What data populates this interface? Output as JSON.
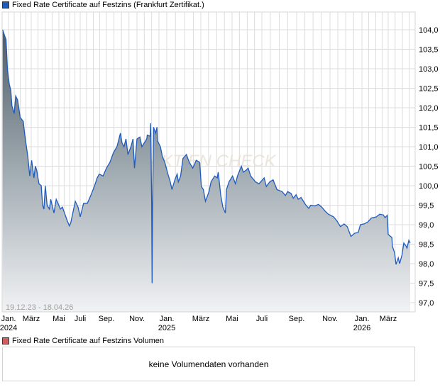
{
  "legend": {
    "price_label": "Fixed Rate Certificate auf Festzins (Frankfurt Zertifikat.)",
    "price_color": "#1f5bbf",
    "volume_label": "Fixed Rate Certificate auf Festzins Volumen",
    "volume_color": "#d06060"
  },
  "volume": {
    "empty_message": "keine Volumendaten vorhanden"
  },
  "watermark": "AKTIEN CHECK",
  "chart_data": {
    "type": "area",
    "title": "Fixed Rate Certificate auf Festzins (Frankfurt Zertifikat.)",
    "date_range_label": "19.12.23 - 18.04.26",
    "xlabel": "",
    "ylabel": "",
    "ylim": [
      96.7,
      104.5
    ],
    "yticks": [
      "97,0",
      "97,5",
      "98,0",
      "98,5",
      "99,0",
      "99,5",
      "100,0",
      "100,5",
      "101,0",
      "101,5",
      "102,0",
      "102,5",
      "103,0",
      "103,5",
      "104,0"
    ],
    "ytick_values": [
      97.0,
      97.5,
      98.0,
      98.5,
      99.0,
      99.5,
      100.0,
      100.5,
      101.0,
      101.5,
      102.0,
      102.5,
      103.0,
      103.5,
      104.0
    ],
    "xrange": [
      "2023-12-19",
      "2026-04-18"
    ],
    "xticks": [
      {
        "date": "2024-01-01",
        "label": "Jan.",
        "sub": "2024"
      },
      {
        "date": "2024-03-01",
        "label": "März",
        "sub": ""
      },
      {
        "date": "2024-05-01",
        "label": "Mai",
        "sub": ""
      },
      {
        "date": "2024-07-01",
        "label": "Juli",
        "sub": ""
      },
      {
        "date": "2024-09-01",
        "label": "Sep.",
        "sub": ""
      },
      {
        "date": "2024-11-01",
        "label": "Nov.",
        "sub": ""
      },
      {
        "date": "2025-01-01",
        "label": "Jan.",
        "sub": "2025"
      },
      {
        "date": "2025-03-01",
        "label": "März",
        "sub": ""
      },
      {
        "date": "2025-05-01",
        "label": "Mai",
        "sub": ""
      },
      {
        "date": "2025-07-01",
        "label": "Juli",
        "sub": ""
      },
      {
        "date": "2025-09-01",
        "label": "Sep.",
        "sub": ""
      },
      {
        "date": "2025-11-01",
        "label": "Nov.",
        "sub": ""
      },
      {
        "date": "2026-01-01",
        "label": "Jan.",
        "sub": "2026"
      },
      {
        "date": "2026-03-01",
        "label": "März",
        "sub": ""
      }
    ],
    "grid": true,
    "legend_position": "top-left",
    "series": [
      {
        "name": "Fixed Rate Certificate auf Festzins",
        "points": [
          [
            "2023-12-20",
            104.0
          ],
          [
            "2023-12-24",
            103.85
          ],
          [
            "2023-12-27",
            103.75
          ],
          [
            "2023-12-30",
            102.95
          ],
          [
            "2024-01-03",
            102.6
          ],
          [
            "2024-01-07",
            102.45
          ],
          [
            "2024-01-10",
            102.05
          ],
          [
            "2024-01-16",
            101.85
          ],
          [
            "2024-01-20",
            102.3
          ],
          [
            "2024-01-25",
            102.2
          ],
          [
            "2024-02-01",
            101.75
          ],
          [
            "2024-02-09",
            101.65
          ],
          [
            "2024-02-13",
            101.3
          ],
          [
            "2024-02-21",
            100.75
          ],
          [
            "2024-02-26",
            100.25
          ],
          [
            "2024-03-02",
            100.65
          ],
          [
            "2024-03-07",
            100.2
          ],
          [
            "2024-03-10",
            100.5
          ],
          [
            "2024-03-13",
            100.4
          ],
          [
            "2024-03-18",
            100.05
          ],
          [
            "2024-03-23",
            100.0
          ],
          [
            "2024-03-26",
            99.5
          ],
          [
            "2024-03-29",
            99.4
          ],
          [
            "2024-04-01",
            100.0
          ],
          [
            "2024-04-05",
            99.5
          ],
          [
            "2024-04-10",
            99.4
          ],
          [
            "2024-04-13",
            99.65
          ],
          [
            "2024-04-20",
            99.3
          ],
          [
            "2024-04-25",
            99.65
          ],
          [
            "2024-04-29",
            99.55
          ],
          [
            "2024-05-05",
            99.4
          ],
          [
            "2024-05-11",
            99.45
          ],
          [
            "2024-05-19",
            99.25
          ],
          [
            "2024-05-25",
            99.1
          ],
          [
            "2024-05-31",
            98.97
          ],
          [
            "2024-06-04",
            99.05
          ],
          [
            "2024-06-11",
            99.35
          ],
          [
            "2024-06-17",
            99.6
          ],
          [
            "2024-06-25",
            99.45
          ],
          [
            "2024-07-01",
            99.2
          ],
          [
            "2024-07-09",
            99.55
          ],
          [
            "2024-07-18",
            99.55
          ],
          [
            "2024-07-26",
            99.75
          ],
          [
            "2024-08-04",
            100.0
          ],
          [
            "2024-08-10",
            100.2
          ],
          [
            "2024-08-15",
            100.3
          ],
          [
            "2024-08-24",
            100.25
          ],
          [
            "2024-09-01",
            100.45
          ],
          [
            "2024-09-08",
            100.6
          ],
          [
            "2024-09-15",
            100.85
          ],
          [
            "2024-09-22",
            101.0
          ],
          [
            "2024-09-29",
            101.35
          ],
          [
            "2024-10-02",
            101.1
          ],
          [
            "2024-10-06",
            101.0
          ],
          [
            "2024-10-10",
            101.2
          ],
          [
            "2024-10-14",
            100.8
          ],
          [
            "2024-10-20",
            101.0
          ],
          [
            "2024-10-24",
            101.2
          ],
          [
            "2024-10-27",
            100.45
          ],
          [
            "2024-11-01",
            101.2
          ],
          [
            "2024-11-07",
            101.25
          ],
          [
            "2024-11-11",
            101.0
          ],
          [
            "2024-11-21",
            101.2
          ],
          [
            "2024-11-22",
            101.3
          ],
          [
            "2024-11-28",
            101.27
          ],
          [
            "2024-11-29",
            101.6
          ],
          [
            "2024-12-01",
            99.55
          ],
          [
            "2024-12-02",
            97.5
          ],
          [
            "2024-12-03",
            99.55
          ],
          [
            "2024-12-05",
            101.5
          ],
          [
            "2024-12-09",
            101.35
          ],
          [
            "2024-12-12",
            101.5
          ],
          [
            "2024-12-13",
            101.15
          ],
          [
            "2024-12-19",
            101.0
          ],
          [
            "2024-12-23",
            100.75
          ],
          [
            "2024-12-28",
            100.6
          ],
          [
            "2025-01-03",
            100.3
          ],
          [
            "2025-01-07",
            100.1
          ],
          [
            "2025-01-10",
            99.9
          ],
          [
            "2025-01-15",
            100.15
          ],
          [
            "2025-01-19",
            100.3
          ],
          [
            "2025-01-21",
            100.1
          ],
          [
            "2025-01-25",
            100.25
          ],
          [
            "2025-01-29",
            100.7
          ],
          [
            "2025-02-04",
            100.8
          ],
          [
            "2025-02-09",
            100.6
          ],
          [
            "2025-02-15",
            100.45
          ],
          [
            "2025-02-21",
            100.65
          ],
          [
            "2025-02-27",
            100.6
          ],
          [
            "2025-03-02",
            99.98
          ],
          [
            "2025-03-06",
            99.9
          ],
          [
            "2025-03-10",
            99.6
          ],
          [
            "2025-03-17",
            99.85
          ],
          [
            "2025-03-21",
            100.1
          ],
          [
            "2025-03-28",
            100.25
          ],
          [
            "2025-04-02",
            100.2
          ],
          [
            "2025-04-04",
            100.35
          ],
          [
            "2025-04-09",
            99.75
          ],
          [
            "2025-04-13",
            99.45
          ],
          [
            "2025-04-18",
            99.3
          ],
          [
            "2025-04-20",
            99.9
          ],
          [
            "2025-04-25",
            100.1
          ],
          [
            "2025-05-02",
            100.25
          ],
          [
            "2025-05-08",
            100.05
          ],
          [
            "2025-05-12",
            100.25
          ],
          [
            "2025-05-20",
            100.5
          ],
          [
            "2025-05-24",
            100.35
          ],
          [
            "2025-05-30",
            100.4
          ],
          [
            "2025-06-03",
            100.45
          ],
          [
            "2025-06-08",
            100.25
          ],
          [
            "2025-06-18",
            100.1
          ],
          [
            "2025-06-25",
            100.05
          ],
          [
            "2025-07-05",
            100.2
          ],
          [
            "2025-07-09",
            99.98
          ],
          [
            "2025-07-15",
            100.1
          ],
          [
            "2025-07-21",
            100.15
          ],
          [
            "2025-07-28",
            99.9
          ],
          [
            "2025-08-06",
            99.85
          ],
          [
            "2025-08-12",
            99.75
          ],
          [
            "2025-08-16",
            99.85
          ],
          [
            "2025-08-22",
            99.8
          ],
          [
            "2025-08-26",
            99.68
          ],
          [
            "2025-08-31",
            99.77
          ],
          [
            "2025-09-04",
            99.65
          ],
          [
            "2025-09-09",
            99.7
          ],
          [
            "2025-09-17",
            99.52
          ],
          [
            "2025-09-23",
            99.42
          ],
          [
            "2025-09-27",
            99.5
          ],
          [
            "2025-10-04",
            99.48
          ],
          [
            "2025-10-11",
            99.52
          ],
          [
            "2025-10-17",
            99.45
          ],
          [
            "2025-10-23",
            99.35
          ],
          [
            "2025-10-29",
            99.27
          ],
          [
            "2025-11-08",
            99.2
          ],
          [
            "2025-11-14",
            99.1
          ],
          [
            "2025-11-21",
            98.95
          ],
          [
            "2025-11-28",
            99.02
          ],
          [
            "2025-12-04",
            98.95
          ],
          [
            "2025-12-11",
            98.7
          ],
          [
            "2025-12-18",
            98.78
          ],
          [
            "2025-12-25",
            98.8
          ],
          [
            "2025-12-29",
            99.0
          ],
          [
            "2026-01-06",
            99.02
          ],
          [
            "2026-01-14",
            99.07
          ],
          [
            "2026-01-22",
            99.17
          ],
          [
            "2026-02-02",
            99.2
          ],
          [
            "2026-02-10",
            99.27
          ],
          [
            "2026-02-18",
            99.25
          ],
          [
            "2026-02-22",
            99.18
          ],
          [
            "2026-02-27",
            99.24
          ],
          [
            "2026-03-01",
            98.75
          ],
          [
            "2026-03-09",
            98.67
          ],
          [
            "2026-03-10",
            98.45
          ],
          [
            "2026-03-15",
            98.28
          ],
          [
            "2026-03-18",
            97.98
          ],
          [
            "2026-03-23",
            98.15
          ],
          [
            "2026-03-26",
            98.0
          ],
          [
            "2026-03-31",
            98.22
          ],
          [
            "2026-04-04",
            98.53
          ],
          [
            "2026-04-09",
            98.45
          ],
          [
            "2026-04-11",
            98.4
          ],
          [
            "2026-04-15",
            98.6
          ],
          [
            "2026-04-18",
            98.53
          ]
        ]
      }
    ]
  }
}
